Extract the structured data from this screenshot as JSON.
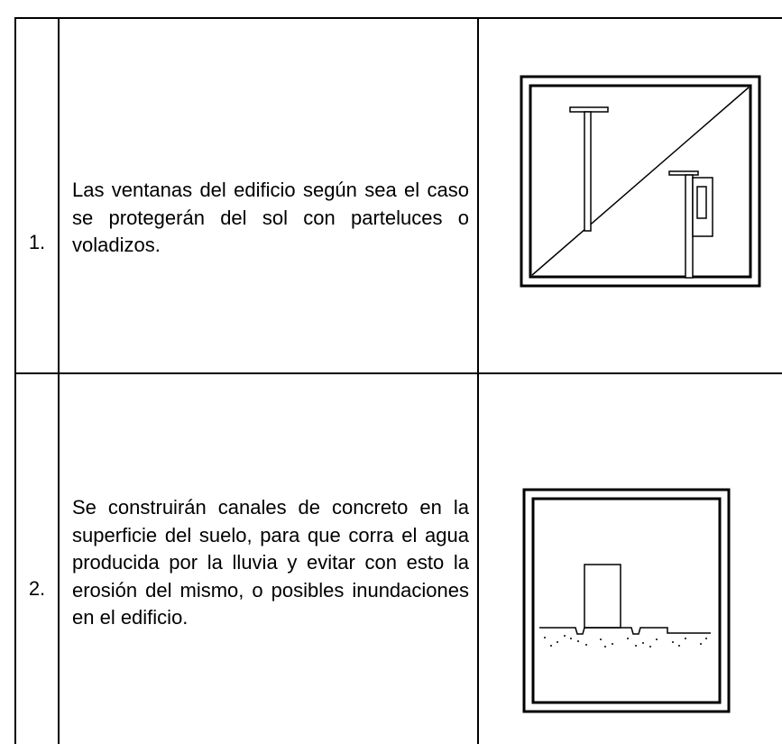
{
  "table": {
    "rows": [
      [
        "1.",
        "Las ventanas del edificio según sea el caso se protegerán del sol con parteluces o voladizos."
      ],
      [
        "2.",
        "Se construirán canales de concreto en la superficie del suelo, para que corra el agua producida por la lluvia y evitar con esto la erosión del mismo, o posibles inundaciones en el edificio."
      ]
    ]
  }
}
